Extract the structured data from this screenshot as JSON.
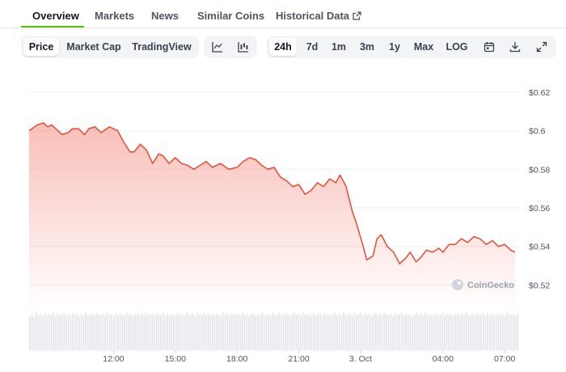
{
  "tabs": [
    {
      "label": "Overview",
      "active": true
    },
    {
      "label": "Markets"
    },
    {
      "label": "News"
    },
    {
      "label": "Similar Coins"
    },
    {
      "label": "Historical Data",
      "external_icon": "external-link-icon"
    }
  ],
  "chart_type_buttons": [
    {
      "label": "Price",
      "active": true
    },
    {
      "label": "Market Cap"
    },
    {
      "label": "TradingView"
    }
  ],
  "view_icons": [
    "line-chart-icon",
    "candlestick-icon"
  ],
  "range_buttons": [
    {
      "label": "24h",
      "active": true
    },
    {
      "label": "7d"
    },
    {
      "label": "1m"
    },
    {
      "label": "3m"
    },
    {
      "label": "1y"
    },
    {
      "label": "Max"
    },
    {
      "label": "LOG"
    }
  ],
  "action_icons": [
    "calendar-icon",
    "download-icon",
    "expand-icon"
  ],
  "watermark": "CoinGecko",
  "colors": {
    "line": "#e5533d",
    "accent": "#4bcc00",
    "volume": "#e5e7eb"
  },
  "chart_data": {
    "type": "area",
    "title": "",
    "xlabel": "",
    "ylabel": "",
    "y_ticks": [
      "$0.62",
      "$0.6",
      "$0.58",
      "$0.56",
      "$0.54",
      "$0.52"
    ],
    "y_tick_values": [
      0.62,
      0.6,
      0.58,
      0.56,
      0.54,
      0.52
    ],
    "ylim": [
      0.5105,
      0.6275
    ],
    "x_ticks": [
      "12:00",
      "15:00",
      "18:00",
      "21:00",
      "3. Oct",
      "04:00",
      "07:00"
    ],
    "x_tick_hours": [
      12,
      15,
      18,
      21,
      24,
      28,
      31
    ],
    "xlim_hours": [
      7.9,
      31.7
    ],
    "grid": true,
    "series": [
      {
        "values_hours": [
          7.9,
          8.3,
          8.6,
          8.8,
          9.0,
          9.2,
          9.5,
          9.8,
          10.0,
          10.3,
          10.6,
          10.8,
          11.1,
          11.4,
          11.8,
          12.2,
          12.5,
          12.8,
          13.0,
          13.3,
          13.6,
          13.9,
          14.2,
          14.4,
          14.7,
          15.0,
          15.3,
          15.6,
          15.9,
          16.2,
          16.5,
          16.8,
          17.2,
          17.6,
          18.0,
          18.3,
          18.6,
          18.9,
          19.2,
          19.5,
          19.8,
          20.1,
          20.4,
          20.7,
          21.0,
          21.3,
          21.6,
          21.9,
          22.2,
          22.5,
          22.8,
          23.0,
          23.3,
          23.6,
          23.8,
          24.1,
          24.3,
          24.6,
          24.8,
          25.0,
          25.3,
          25.6,
          25.9,
          26.2,
          26.4,
          26.7,
          26.9,
          27.2,
          27.5,
          27.8,
          28.0,
          28.3,
          28.6,
          28.9,
          29.2,
          29.5,
          29.8,
          30.1,
          30.4,
          30.7,
          31.0,
          31.3,
          31.5
        ],
        "values": [
          0.6,
          0.603,
          0.604,
          0.602,
          0.603,
          0.601,
          0.598,
          0.599,
          0.601,
          0.601,
          0.598,
          0.601,
          0.602,
          0.599,
          0.602,
          0.6,
          0.594,
          0.589,
          0.589,
          0.593,
          0.59,
          0.583,
          0.588,
          0.587,
          0.583,
          0.586,
          0.583,
          0.582,
          0.58,
          0.582,
          0.584,
          0.581,
          0.583,
          0.58,
          0.581,
          0.584,
          0.586,
          0.585,
          0.582,
          0.58,
          0.581,
          0.576,
          0.574,
          0.571,
          0.572,
          0.567,
          0.569,
          0.573,
          0.571,
          0.575,
          0.573,
          0.577,
          0.571,
          0.558,
          0.552,
          0.541,
          0.533,
          0.535,
          0.544,
          0.546,
          0.54,
          0.537,
          0.531,
          0.534,
          0.537,
          0.532,
          0.534,
          0.538,
          0.537,
          0.539,
          0.537,
          0.541,
          0.541,
          0.544,
          0.542,
          0.545,
          0.544,
          0.541,
          0.543,
          0.54,
          0.541,
          0.538,
          0.537
        ]
      }
    ],
    "volume": [
      0.86,
      0.92,
      0.84,
      0.95,
      0.88,
      0.9,
      0.85,
      0.93,
      0.87,
      0.91,
      0.89,
      0.94,
      0.86,
      0.92,
      0.88,
      0.9,
      0.95,
      0.87,
      0.91,
      0.86,
      0.93,
      0.89,
      0.9,
      0.85,
      0.92,
      0.88,
      0.94,
      0.87,
      0.91,
      0.89,
      0.86,
      0.93,
      0.9,
      0.88,
      0.92,
      0.87,
      0.95,
      0.89,
      0.91,
      0.86,
      0.93,
      0.88,
      0.9,
      0.92,
      0.87,
      0.94,
      0.89,
      0.91,
      0.86,
      0.9,
      0.93,
      0.88,
      0.92,
      0.87,
      0.95,
      0.9,
      0.89,
      0.91,
      0.86,
      0.93,
      0.88,
      0.9,
      0.94,
      0.87,
      0.92,
      0.89,
      0.91,
      0.86,
      0.9,
      0.93,
      0.88,
      0.92,
      0.87,
      0.95,
      0.89,
      0.9,
      0.91,
      0.86,
      0.93,
      0.88,
      0.9,
      0.94,
      0.87,
      0.92,
      0.89,
      0.91,
      0.88,
      0.92,
      0.9,
      0.87,
      0.95,
      0.89,
      0.91,
      0.86,
      0.93,
      0.88,
      0.9,
      0.92,
      0.87,
      0.94,
      0.89,
      0.91,
      0.86,
      0.9,
      0.93,
      0.88,
      0.92,
      0.87,
      0.95,
      0.9,
      0.89,
      0.91,
      0.86,
      0.93,
      0.88,
      0.9,
      0.94,
      0.87,
      0.92,
      0.89,
      0.91,
      0.86,
      0.9,
      0.93,
      0.88,
      0.92,
      0.87,
      0.95,
      0.9,
      0.89,
      0.91,
      0.86,
      0.93,
      0.88,
      0.9,
      0.94,
      0.87,
      0.92,
      0.89,
      0.91,
      0.86,
      0.9,
      0.93,
      0.88,
      0.92,
      0.87,
      0.95,
      0.9,
      0.89,
      0.91,
      0.86,
      0.93,
      0.88,
      0.9,
      0.94,
      0.87,
      0.92,
      0.89,
      0.91,
      0.86,
      0.9,
      0.93,
      0.88,
      0.92,
      0.87,
      0.95,
      0.9,
      0.89,
      0.91,
      0.86,
      0.93,
      0.88,
      0.9,
      0.94,
      0.87,
      0.92,
      0.89,
      0.91,
      0.86,
      0.9,
      0.93,
      0.88,
      0.92,
      0.87,
      0.95,
      0.9,
      0.89,
      0.91,
      0.86,
      0.93,
      0.88,
      0.9,
      0.94,
      0.87,
      0.92,
      0.89,
      0.91,
      0.86,
      0.9,
      0.93,
      0.88,
      0.92,
      0.87,
      0.95,
      0.9,
      0.89,
      0.91,
      0.86,
      0.93,
      0.88,
      0.9,
      0.94,
      0.87,
      0.92,
      0.89,
      0.91,
      0.86,
      0.9,
      0.93,
      0.88,
      0.92,
      0.87,
      0.95,
      0.9,
      0.89,
      0.91,
      0.86,
      0.93
    ]
  }
}
